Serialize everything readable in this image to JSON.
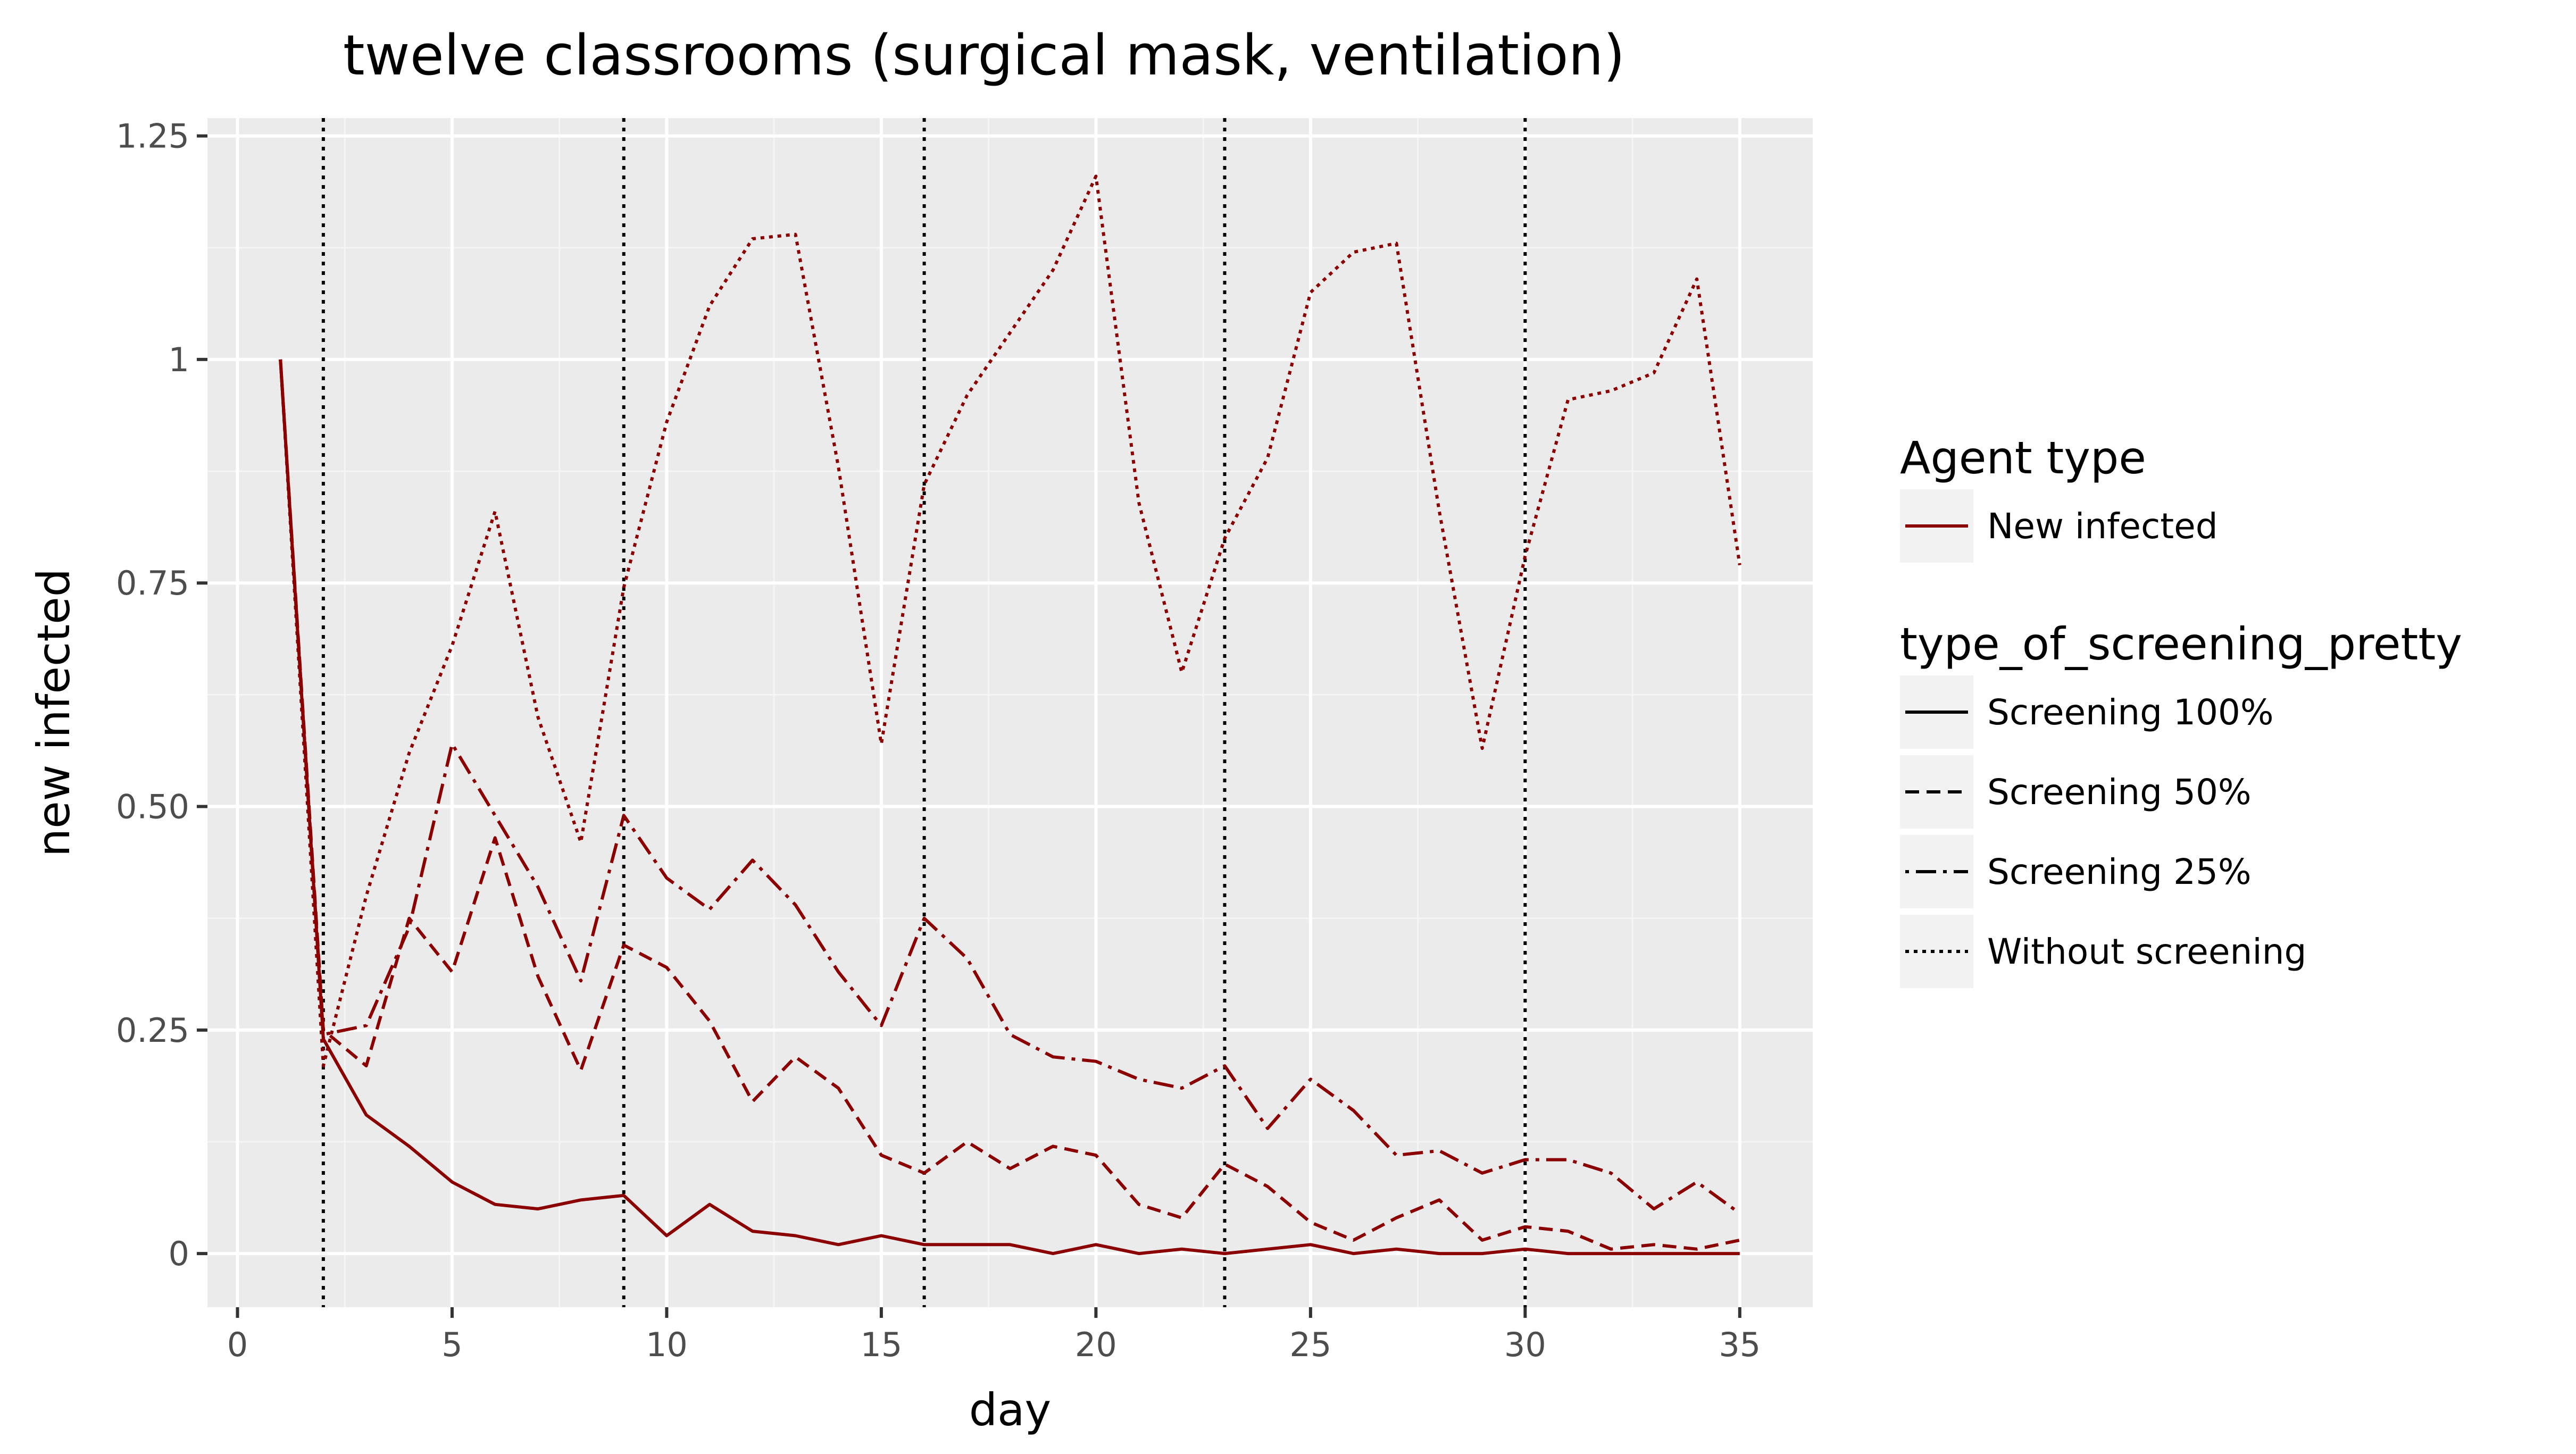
{
  "chart_data": {
    "type": "line",
    "title": "twelve classrooms (surgical mask, ventilation)",
    "xlabel": "day",
    "ylabel": "new infected",
    "xlim": [
      -0.7,
      36.7
    ],
    "ylim": [
      -0.06,
      1.27
    ],
    "x_ticks": [
      0,
      5,
      10,
      15,
      20,
      25,
      30,
      35
    ],
    "x_tick_labels": [
      "0",
      "5",
      "10",
      "15",
      "20",
      "25",
      "30",
      "35"
    ],
    "y_ticks": [
      0,
      0.25,
      0.5,
      0.75,
      1,
      1.25
    ],
    "y_tick_labels": [
      "0",
      "0.25",
      "0.50",
      "0.75",
      "1",
      "1.25"
    ],
    "grid": true,
    "panel_background": "#ebebeb",
    "line_color": "#8b0000",
    "vlines": [
      2,
      9,
      16,
      23,
      30
    ],
    "x": [
      1,
      2,
      3,
      4,
      5,
      6,
      7,
      8,
      9,
      10,
      11,
      12,
      13,
      14,
      15,
      16,
      17,
      18,
      19,
      20,
      21,
      22,
      23,
      24,
      25,
      26,
      27,
      28,
      29,
      30,
      31,
      32,
      33,
      34,
      35
    ],
    "series": [
      {
        "name": "Screening 100%",
        "linetype": "solid",
        "values": [
          1.0,
          0.24,
          0.155,
          0.12,
          0.08,
          0.055,
          0.05,
          0.06,
          0.065,
          0.02,
          0.055,
          0.025,
          0.02,
          0.01,
          0.02,
          0.01,
          0.01,
          0.01,
          0.0,
          0.01,
          0.0,
          0.005,
          0.0,
          0.005,
          0.01,
          0.0,
          0.005,
          0.0,
          0.0,
          0.005,
          0.0,
          0.0,
          0.0,
          0.0,
          0.0
        ]
      },
      {
        "name": "Screening 50%",
        "linetype": "dashed",
        "values": [
          1.0,
          0.25,
          0.21,
          0.375,
          0.315,
          0.465,
          0.31,
          0.205,
          0.345,
          0.32,
          0.26,
          0.17,
          0.22,
          0.185,
          0.11,
          0.09,
          0.125,
          0.095,
          0.12,
          0.11,
          0.055,
          0.04,
          0.1,
          0.075,
          0.035,
          0.015,
          0.04,
          0.06,
          0.015,
          0.03,
          0.025,
          0.005,
          0.01,
          0.005,
          0.015
        ]
      },
      {
        "name": "Screening 25%",
        "linetype": "dotdash",
        "values": [
          1.0,
          0.245,
          0.255,
          0.365,
          0.57,
          0.49,
          0.41,
          0.305,
          0.49,
          0.42,
          0.385,
          0.44,
          0.39,
          0.315,
          0.255,
          0.375,
          0.33,
          0.245,
          0.22,
          0.215,
          0.195,
          0.185,
          0.21,
          0.14,
          0.195,
          0.16,
          0.11,
          0.115,
          0.09,
          0.105,
          0.105,
          0.09,
          0.05,
          0.08,
          0.045
        ]
      },
      {
        "name": "Without screening",
        "linetype": "dotted",
        "values": [
          1.0,
          0.21,
          0.4,
          0.56,
          0.68,
          0.83,
          0.6,
          0.46,
          0.745,
          0.93,
          1.06,
          1.135,
          1.14,
          0.88,
          0.57,
          0.86,
          0.96,
          1.03,
          1.1,
          1.205,
          0.84,
          0.65,
          0.8,
          0.89,
          1.075,
          1.12,
          1.13,
          0.83,
          0.565,
          0.78,
          0.955,
          0.965,
          0.985,
          1.09,
          0.77
        ]
      }
    ],
    "legend": {
      "placement": "right",
      "agent_type_title": "Agent type",
      "agent_type_entries": [
        "New infected"
      ],
      "linetype_title": "type_of_screening_pretty",
      "linetype_entries": [
        "Screening 100%",
        "Screening 50%",
        "Screening 25%",
        "Without screening"
      ]
    }
  }
}
